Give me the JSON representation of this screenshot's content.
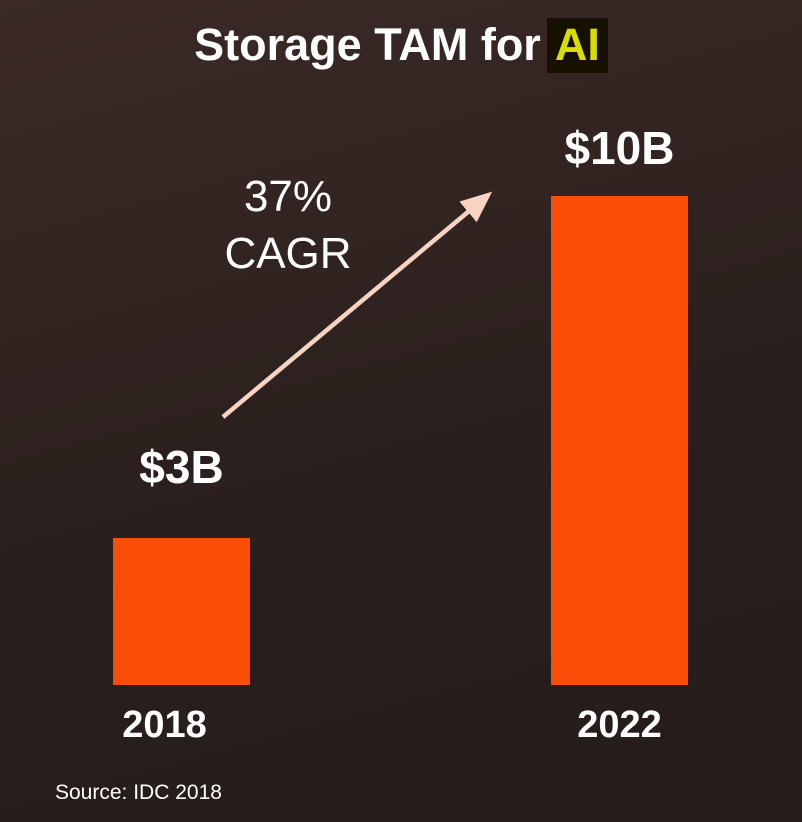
{
  "title": {
    "prefix": "Storage TAM for",
    "highlight": "AI"
  },
  "chart_data": {
    "type": "bar",
    "title": "Storage TAM for AI",
    "categories": [
      "2018",
      "2022"
    ],
    "values": [
      3,
      10
    ],
    "value_labels": [
      "$3B",
      "$10B"
    ],
    "unit": "B USD",
    "ylim": [
      0,
      10
    ],
    "grid": false,
    "legend": false,
    "bar_color": "#FA4E08",
    "annotation": {
      "line1": "37%",
      "line2": "CAGR"
    }
  },
  "annotation": {
    "line1": "37%",
    "line2": "CAGR"
  },
  "source": "Source: IDC 2018",
  "colors": {
    "bar": "#FA4E08",
    "arrow": "#F7D3C1",
    "highlight_text": "#D8DE00",
    "highlight_bg": "#171000",
    "text": "#FFFFFF",
    "background_top": "#3B2A27",
    "background_bottom": "#251C1A"
  }
}
